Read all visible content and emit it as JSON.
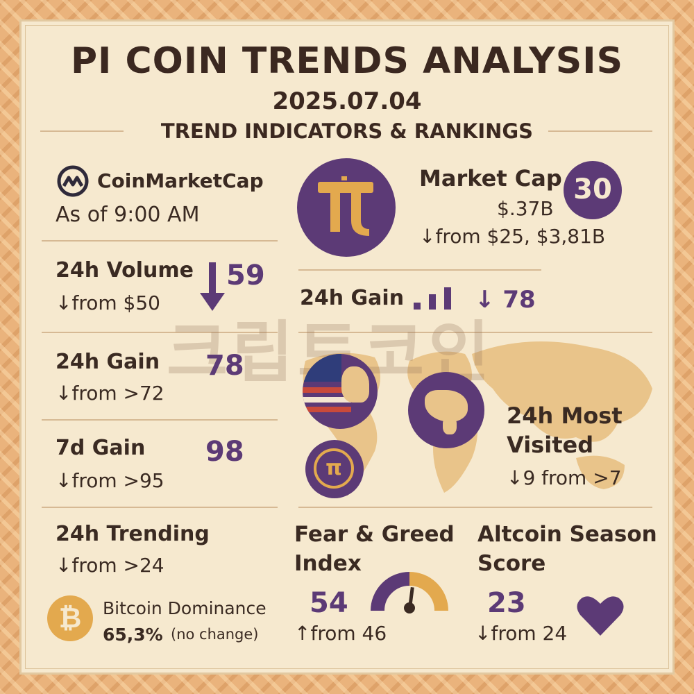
{
  "header": {
    "title": "PI COIN TRENDS ANALYSIS",
    "date": "2025.07.04",
    "subtitle": "TREND INDICATORS & RANKINGS"
  },
  "source": {
    "brand": "CoinMarketCap",
    "as_of": "As of 9:00 AM"
  },
  "market_cap": {
    "label": "Market Cap",
    "rank": "30",
    "value": "$.37B",
    "change": "↓from $25, $3,81B"
  },
  "volume_24h": {
    "label": "24h Volume",
    "rank": "59",
    "change": "↓from $50"
  },
  "gain_24h_top": {
    "label": "24h Gain",
    "rank": "↓ 78"
  },
  "gain_24h": {
    "label": "24h Gain",
    "rank": "78",
    "change": "↓from >72"
  },
  "gain_7d": {
    "label": "7d Gain",
    "rank": "98",
    "change": "↓from >95"
  },
  "most_visited": {
    "label_line1": "24h Most",
    "label_line2": "Visited",
    "change": "↓9 from >7"
  },
  "trending_24h": {
    "label": "24h Trending",
    "change": "↓from >24"
  },
  "fear_greed": {
    "label_line1": "Fear & Greed",
    "label_line2": "Index",
    "value": "54",
    "change": "↑from 46",
    "gauge_fraction": 0.54
  },
  "altcoin_season": {
    "label_line1": "Altcoin Season",
    "label_line2": "Score",
    "value": "23",
    "change": "↓from 24"
  },
  "bitcoin_dominance": {
    "label": "Bitcoin Dominance",
    "value": "65,3%",
    "note": "(no change)"
  },
  "watermark": "크립토코인",
  "colors": {
    "purple": "#5c3a76",
    "gold": "#e3a94e",
    "text": "#3a2a22",
    "background": "#f6e9cf"
  }
}
